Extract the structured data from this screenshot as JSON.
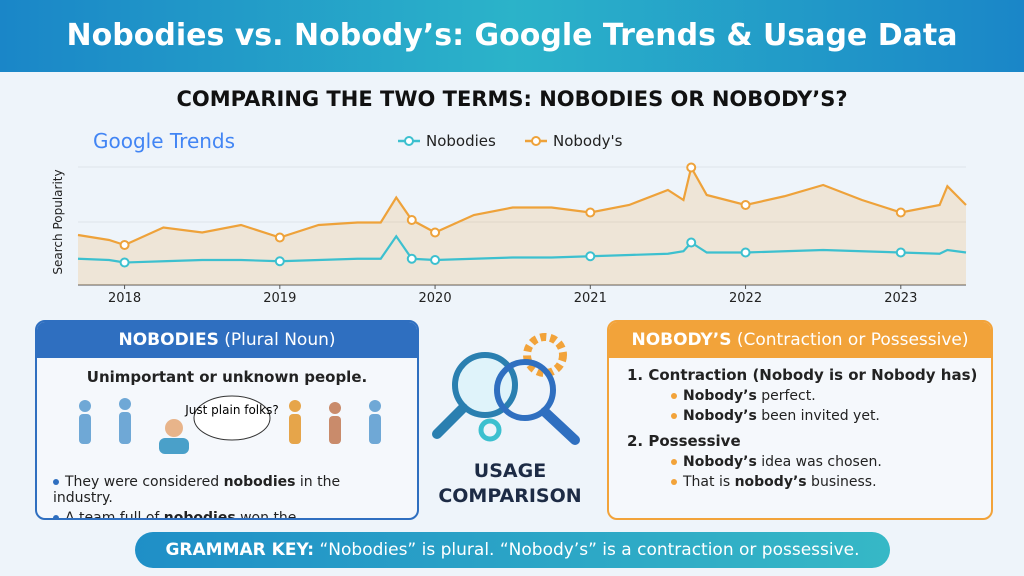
{
  "header": {
    "title": "Nobodies vs. Nobody’s: Google Trends & Usage Data"
  },
  "chart_data": {
    "type": "line",
    "title": "COMPARING THE TWO TERMS: NOBODIES OR NOBODY’S?",
    "source": "Google Trends",
    "y_label": "Search Popularity",
    "x": [
      2017.7,
      2017.9,
      2018.0,
      2018.25,
      2018.5,
      2018.75,
      2019.0,
      2019.25,
      2019.5,
      2019.65,
      2019.75,
      2019.85,
      2020.0,
      2020.25,
      2020.5,
      2020.75,
      2021.0,
      2021.25,
      2021.5,
      2021.6,
      2021.65,
      2021.75,
      2022.0,
      2022.25,
      2022.5,
      2022.75,
      2023.0,
      2023.25,
      2023.3,
      2023.42
    ],
    "xlim": [
      2017.7,
      2023.42
    ],
    "xticks": [
      2018,
      2019,
      2020,
      2021,
      2022,
      2023
    ],
    "ylim": [
      0,
      100
    ],
    "series": [
      {
        "name": "Nobodies",
        "color": "#3cc0cf",
        "values": [
          21,
          20,
          18,
          19,
          20,
          20,
          19,
          20,
          21,
          21,
          39,
          21,
          20,
          21,
          22,
          22,
          23,
          24,
          25,
          27,
          34,
          26,
          26,
          27,
          28,
          27,
          26,
          25,
          28,
          26
        ]
      },
      {
        "name": "Nobody's",
        "color": "#eea23a",
        "values": [
          40,
          36,
          32,
          46,
          42,
          48,
          38,
          48,
          50,
          50,
          70,
          52,
          42,
          56,
          62,
          62,
          58,
          64,
          76,
          68,
          94,
          72,
          64,
          71,
          80,
          68,
          58,
          64,
          79,
          64
        ]
      }
    ]
  },
  "left_panel": {
    "title": "NOBODIES",
    "subtitle": "(Plural Noun)",
    "definition": "Unimportant or unknown people.",
    "bubble": "Just plain folks?",
    "examples": [
      [
        "They were considered ",
        "nobodies",
        " in the industry."
      ],
      [
        "A team full of ",
        "nobodies",
        " won the championship."
      ]
    ]
  },
  "center": {
    "line1": "USAGE",
    "line2": "COMPARISON"
  },
  "right_panel": {
    "title": "NOBODY’S",
    "subtitle": "(Contraction or Possessive)",
    "section1": "1. Contraction (Nobody is or Nobody has)",
    "examples1": [
      [
        "Nobody’s",
        " perfect."
      ],
      [
        "Nobody’s",
        " been invited yet."
      ]
    ],
    "section2": "2. Possessive",
    "examples2": [
      [
        "Nobody’s",
        " idea was chosen."
      ],
      [
        "That is ",
        "nobody’s",
        " business."
      ]
    ]
  },
  "footer": {
    "key": "GRAMMAR KEY:",
    "text": "“Nobodies” is plural. “Nobody’s” is a contraction or possessive."
  }
}
